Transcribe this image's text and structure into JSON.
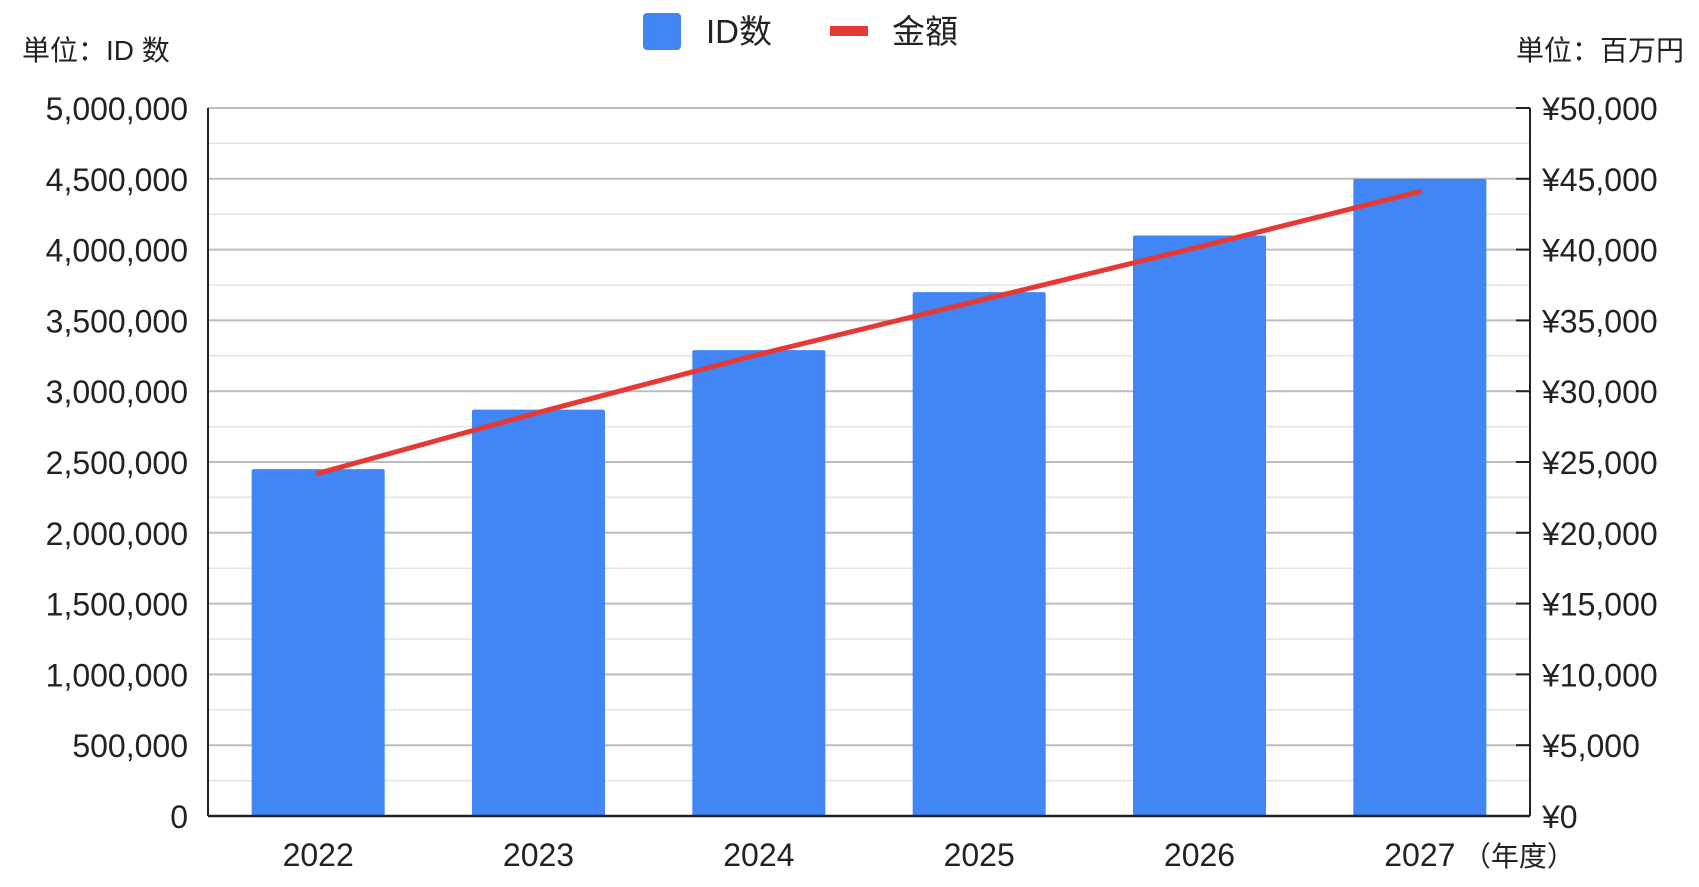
{
  "chart_data": {
    "type": "bar",
    "categories": [
      "2022",
      "2023",
      "2024",
      "2025",
      "2026",
      "2027"
    ],
    "x_unit_label": "（年度）",
    "series": [
      {
        "name": "ID数",
        "kind": "bar",
        "axis": "left",
        "color": "#4285f4",
        "values": [
          2450000,
          2870000,
          3290000,
          3700000,
          4100000,
          4500000
        ]
      },
      {
        "name": "金額",
        "kind": "line",
        "axis": "right",
        "color": "#e53935",
        "values": [
          24200,
          28500,
          32600,
          36400,
          40200,
          44100
        ]
      }
    ],
    "y_left": {
      "unit_label": "単位：ID 数",
      "ylim": [
        0,
        5000000
      ],
      "ticks": [
        "0",
        "500,000",
        "1,000,000",
        "1,500,000",
        "2,000,000",
        "2,500,000",
        "3,000,000",
        "3,500,000",
        "4,000,000",
        "4,500,000",
        "5,000,000"
      ]
    },
    "y_right": {
      "unit_label": "単位：百万円",
      "ylim": [
        0,
        50000
      ],
      "ticks": [
        "¥0",
        "¥5,000",
        "¥10,000",
        "¥15,000",
        "¥20,000",
        "¥25,000",
        "¥30,000",
        "¥35,000",
        "¥40,000",
        "¥45,000",
        "¥50,000"
      ]
    },
    "grid": true,
    "legend_position": "top-center"
  }
}
